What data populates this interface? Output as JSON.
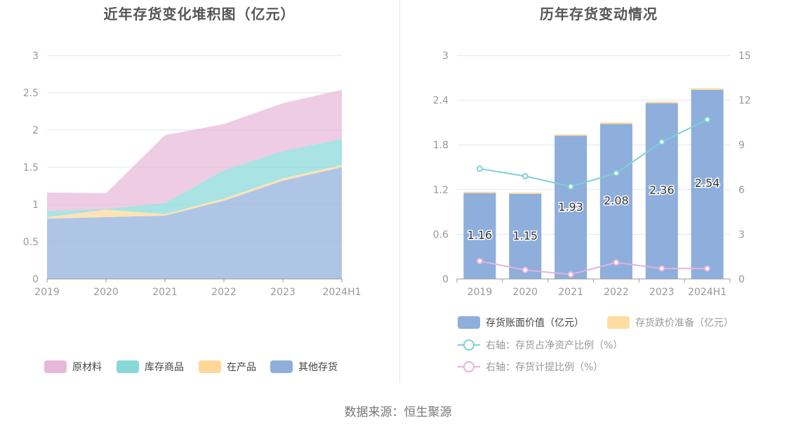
{
  "source": {
    "label": "数据来源：",
    "value": "恒生聚源"
  },
  "charts": {
    "left": {
      "title": "近年存货变化堆积图（亿元）"
    },
    "right": {
      "title": "历年存货变动情况"
    }
  },
  "chart_data": [
    {
      "type": "area",
      "stacked": true,
      "title": "近年存货变化堆积图（亿元）",
      "categories": [
        "2019",
        "2020",
        "2021",
        "2022",
        "2023",
        "2024H1"
      ],
      "ylim": [
        0,
        3
      ],
      "yticks": [
        "0",
        "0.5",
        "1",
        "1.5",
        "2",
        "2.5",
        "3"
      ],
      "grid": true,
      "legend_position": "bottom",
      "series": [
        {
          "name": "其他存货",
          "color": "#8faedc",
          "values": [
            0.81,
            0.83,
            0.85,
            1.05,
            1.32,
            1.5
          ]
        },
        {
          "name": "在产品",
          "color": "#ffd898",
          "values": [
            0.02,
            0.1,
            0.02,
            0.03,
            0.03,
            0.03
          ]
        },
        {
          "name": "库存商品",
          "color": "#88d8d8",
          "values": [
            0.08,
            0.01,
            0.15,
            0.38,
            0.37,
            0.35
          ]
        },
        {
          "name": "原材料",
          "color": "#e8b8d8",
          "values": [
            0.25,
            0.21,
            0.91,
            0.62,
            0.64,
            0.66
          ]
        }
      ],
      "legend_order": [
        "原材料",
        "库存商品",
        "在产品",
        "其他存货"
      ]
    },
    {
      "type": "bar",
      "stacked": true,
      "title": "历年存货变动情况",
      "categories": [
        "2019",
        "2020",
        "2021",
        "2022",
        "2023",
        "2024H1"
      ],
      "ylim": [
        0,
        3
      ],
      "yticks": [
        "0",
        "0.6",
        "1.2",
        "1.8",
        "2.4",
        "3"
      ],
      "y2lim": [
        0,
        15
      ],
      "y2ticks": [
        "0",
        "3",
        "6",
        "9",
        "12",
        "15"
      ],
      "grid": true,
      "legend_position": "bottom",
      "series": [
        {
          "name": "存货账面价值（亿元）",
          "color": "#8eaedc",
          "values": [
            1.16,
            1.15,
            1.93,
            2.08,
            2.36,
            2.54
          ],
          "labels": [
            "1.16",
            "1.15",
            "1.93",
            "2.08",
            "2.36",
            "2.54"
          ]
        },
        {
          "name": "存货跌价准备（亿元）",
          "color": "#ffdca0",
          "values": [
            0.01,
            0.01,
            0.01,
            0.02,
            0.02,
            0.02
          ]
        }
      ],
      "line_series": [
        {
          "name": "右轴：存货占净资产比例（%）",
          "color": "#7fd0d4",
          "axis": "right",
          "values": [
            7.4,
            6.9,
            6.2,
            7.1,
            9.2,
            10.7
          ]
        },
        {
          "name": "右轴：存货计提比例（%）",
          "color": "#e5b3d9",
          "axis": "right",
          "values": [
            1.2,
            0.6,
            0.3,
            1.1,
            0.7,
            0.7
          ]
        }
      ]
    }
  ]
}
